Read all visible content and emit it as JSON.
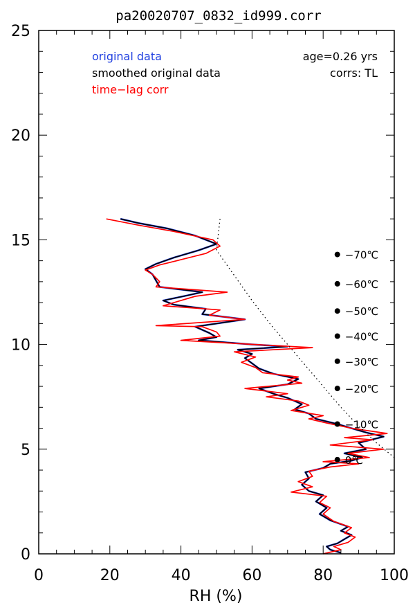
{
  "chart_data": {
    "type": "line",
    "title": "pa20020707_0832_id999.corr",
    "xlabel": "RH (%)",
    "ylabel": "",
    "xlim": [
      0,
      100
    ],
    "ylim": [
      0,
      25
    ],
    "x_ticks": [
      "0",
      "20",
      "40",
      "60",
      "80",
      "100"
    ],
    "y_ticks": [
      "0",
      "5",
      "10",
      "15",
      "20",
      "25"
    ],
    "legend_position": "top-left",
    "legend": [
      {
        "label": "original data",
        "color": "#1f3fe0"
      },
      {
        "label": "smoothed original data",
        "color": "#000000"
      },
      {
        "label": "time−lag corr",
        "color": "#ff0000"
      }
    ],
    "annotations": {
      "age": "age=0.26 yrs",
      "corrs": "corrs: TL"
    },
    "temperature_markers": [
      {
        "label": "−70℃",
        "altitude": 14.3
      },
      {
        "label": "−60℃",
        "altitude": 12.9
      },
      {
        "label": "−50℃",
        "altitude": 11.6
      },
      {
        "label": "−40℃",
        "altitude": 10.4
      },
      {
        "label": "−30℃",
        "altitude": 9.2
      },
      {
        "label": "−20℃",
        "altitude": 7.9
      },
      {
        "label": "−10℃",
        "altitude": 6.2
      },
      {
        "label": "0℃",
        "altitude": 4.5
      }
    ],
    "temperature_marker_rh": 84,
    "series": [
      {
        "name": "original data",
        "color": "#1f3fe0",
        "points": [
          [
            85,
            0.05
          ],
          [
            82,
            0.2
          ],
          [
            81,
            0.35
          ],
          [
            84,
            0.5
          ],
          [
            86,
            0.7
          ],
          [
            88,
            0.9
          ],
          [
            85,
            1.1
          ],
          [
            87,
            1.3
          ],
          [
            82,
            1.6
          ],
          [
            79,
            1.9
          ],
          [
            81,
            2.2
          ],
          [
            78,
            2.5
          ],
          [
            80,
            2.8
          ],
          [
            76,
            3.0
          ],
          [
            74,
            3.3
          ],
          [
            76,
            3.6
          ],
          [
            75,
            3.9
          ],
          [
            80,
            4.1
          ],
          [
            82,
            4.3
          ],
          [
            88,
            4.45
          ],
          [
            91,
            4.6
          ],
          [
            86,
            4.8
          ],
          [
            92,
            5.0
          ],
          [
            90,
            5.3
          ],
          [
            97,
            5.6
          ],
          [
            92,
            5.8
          ],
          [
            88,
            6.0
          ],
          [
            84,
            6.2
          ],
          [
            78,
            6.45
          ],
          [
            76,
            6.7
          ],
          [
            72,
            6.9
          ],
          [
            74,
            7.15
          ],
          [
            70,
            7.45
          ],
          [
            66,
            7.65
          ],
          [
            62,
            7.9
          ],
          [
            70,
            8.1
          ],
          [
            73,
            8.35
          ],
          [
            66,
            8.6
          ],
          [
            62,
            8.85
          ],
          [
            60,
            9.1
          ],
          [
            58,
            9.35
          ],
          [
            60,
            9.55
          ],
          [
            56,
            9.75
          ],
          [
            70,
            9.9
          ],
          [
            60,
            10.0
          ],
          [
            45,
            10.2
          ],
          [
            50,
            10.35
          ],
          [
            48,
            10.55
          ],
          [
            44,
            10.85
          ],
          [
            58,
            11.2
          ],
          [
            46,
            11.45
          ],
          [
            47,
            11.7
          ],
          [
            38,
            11.9
          ],
          [
            35,
            12.1
          ],
          [
            42,
            12.35
          ],
          [
            46,
            12.5
          ],
          [
            34,
            12.75
          ],
          [
            33,
            13.05
          ],
          [
            32,
            13.35
          ],
          [
            30,
            13.6
          ],
          [
            33,
            13.85
          ],
          [
            38,
            14.15
          ],
          [
            45,
            14.5
          ],
          [
            50,
            14.8
          ],
          [
            44,
            15.2
          ],
          [
            36,
            15.55
          ],
          [
            28,
            15.8
          ],
          [
            23,
            16.0
          ]
        ]
      },
      {
        "name": "smoothed original data",
        "color": "#000000",
        "points": [
          [
            85,
            0.05
          ],
          [
            82,
            0.2
          ],
          [
            81,
            0.35
          ],
          [
            84,
            0.5
          ],
          [
            86,
            0.7
          ],
          [
            88,
            0.9
          ],
          [
            85,
            1.1
          ],
          [
            87,
            1.3
          ],
          [
            82,
            1.6
          ],
          [
            79,
            1.9
          ],
          [
            81,
            2.2
          ],
          [
            78,
            2.5
          ],
          [
            80,
            2.8
          ],
          [
            76,
            3.0
          ],
          [
            74,
            3.3
          ],
          [
            76,
            3.6
          ],
          [
            75,
            3.9
          ],
          [
            80,
            4.1
          ],
          [
            82,
            4.3
          ],
          [
            88,
            4.45
          ],
          [
            91,
            4.6
          ],
          [
            86,
            4.8
          ],
          [
            92,
            5.0
          ],
          [
            90,
            5.3
          ],
          [
            97,
            5.6
          ],
          [
            92,
            5.8
          ],
          [
            88,
            6.0
          ],
          [
            84,
            6.2
          ],
          [
            78,
            6.45
          ],
          [
            76,
            6.7
          ],
          [
            72,
            6.9
          ],
          [
            74,
            7.15
          ],
          [
            70,
            7.45
          ],
          [
            66,
            7.65
          ],
          [
            62,
            7.9
          ],
          [
            70,
            8.1
          ],
          [
            73,
            8.35
          ],
          [
            66,
            8.6
          ],
          [
            62,
            8.85
          ],
          [
            60,
            9.1
          ],
          [
            58,
            9.35
          ],
          [
            60,
            9.55
          ],
          [
            56,
            9.75
          ],
          [
            70,
            9.9
          ],
          [
            60,
            10.0
          ],
          [
            45,
            10.2
          ],
          [
            50,
            10.35
          ],
          [
            48,
            10.55
          ],
          [
            44,
            10.85
          ],
          [
            58,
            11.2
          ],
          [
            46,
            11.45
          ],
          [
            47,
            11.7
          ],
          [
            38,
            11.9
          ],
          [
            35,
            12.1
          ],
          [
            42,
            12.35
          ],
          [
            46,
            12.5
          ],
          [
            34,
            12.75
          ],
          [
            33,
            13.05
          ],
          [
            32,
            13.35
          ],
          [
            30,
            13.6
          ],
          [
            33,
            13.85
          ],
          [
            38,
            14.15
          ],
          [
            45,
            14.5
          ],
          [
            50,
            14.8
          ],
          [
            44,
            15.2
          ],
          [
            36,
            15.55
          ],
          [
            28,
            15.8
          ],
          [
            23,
            16.0
          ]
        ]
      },
      {
        "name": "time−lag corr",
        "color": "#ff0000",
        "points": [
          [
            80,
            0.0
          ],
          [
            85,
            0.2
          ],
          [
            83,
            0.35
          ],
          [
            87,
            0.55
          ],
          [
            89,
            0.8
          ],
          [
            86,
            1.0
          ],
          [
            88,
            1.25
          ],
          [
            83,
            1.55
          ],
          [
            80,
            1.9
          ],
          [
            82,
            2.2
          ],
          [
            79,
            2.45
          ],
          [
            81,
            2.75
          ],
          [
            71,
            2.95
          ],
          [
            77,
            3.2
          ],
          [
            73,
            3.45
          ],
          [
            77,
            3.7
          ],
          [
            76,
            3.95
          ],
          [
            82,
            4.15
          ],
          [
            90,
            4.3
          ],
          [
            80,
            4.4
          ],
          [
            93,
            4.6
          ],
          [
            87,
            4.8
          ],
          [
            97,
            5.0
          ],
          [
            82,
            5.2
          ],
          [
            94,
            5.45
          ],
          [
            86,
            5.55
          ],
          [
            98,
            5.75
          ],
          [
            88,
            6.0
          ],
          [
            81,
            6.25
          ],
          [
            76,
            6.45
          ],
          [
            80,
            6.6
          ],
          [
            71,
            6.85
          ],
          [
            76,
            7.1
          ],
          [
            73,
            7.3
          ],
          [
            64,
            7.5
          ],
          [
            70,
            7.65
          ],
          [
            58,
            7.9
          ],
          [
            74,
            8.15
          ],
          [
            70,
            8.3
          ],
          [
            73,
            8.45
          ],
          [
            63,
            8.65
          ],
          [
            61,
            8.9
          ],
          [
            57,
            9.15
          ],
          [
            61,
            9.4
          ],
          [
            55,
            9.65
          ],
          [
            77,
            9.85
          ],
          [
            66,
            9.95
          ],
          [
            40,
            10.2
          ],
          [
            51,
            10.4
          ],
          [
            50,
            10.6
          ],
          [
            46,
            10.85
          ],
          [
            33,
            10.9
          ],
          [
            58,
            11.2
          ],
          [
            48,
            11.4
          ],
          [
            51,
            11.65
          ],
          [
            35,
            11.85
          ],
          [
            39,
            12.05
          ],
          [
            44,
            12.3
          ],
          [
            53,
            12.5
          ],
          [
            33,
            12.75
          ],
          [
            34,
            13.0
          ],
          [
            32,
            13.35
          ],
          [
            30,
            13.55
          ],
          [
            34,
            13.8
          ],
          [
            40,
            14.05
          ],
          [
            47,
            14.35
          ],
          [
            51,
            14.7
          ],
          [
            49,
            15.0
          ],
          [
            38,
            15.4
          ],
          [
            28,
            15.7
          ],
          [
            19,
            16.0
          ]
        ]
      }
    ],
    "dotted_line": {
      "name": "",
      "points": [
        [
          51,
          16.0
        ],
        [
          50,
          14.5
        ],
        [
          55,
          13.3
        ],
        [
          60,
          12.1
        ],
        [
          65,
          11.0
        ],
        [
          70,
          10.0
        ],
        [
          75,
          9.0
        ],
        [
          80,
          8.0
        ],
        [
          85,
          7.0
        ],
        [
          90,
          6.1
        ],
        [
          95,
          5.3
        ],
        [
          100,
          4.6
        ]
      ]
    }
  }
}
